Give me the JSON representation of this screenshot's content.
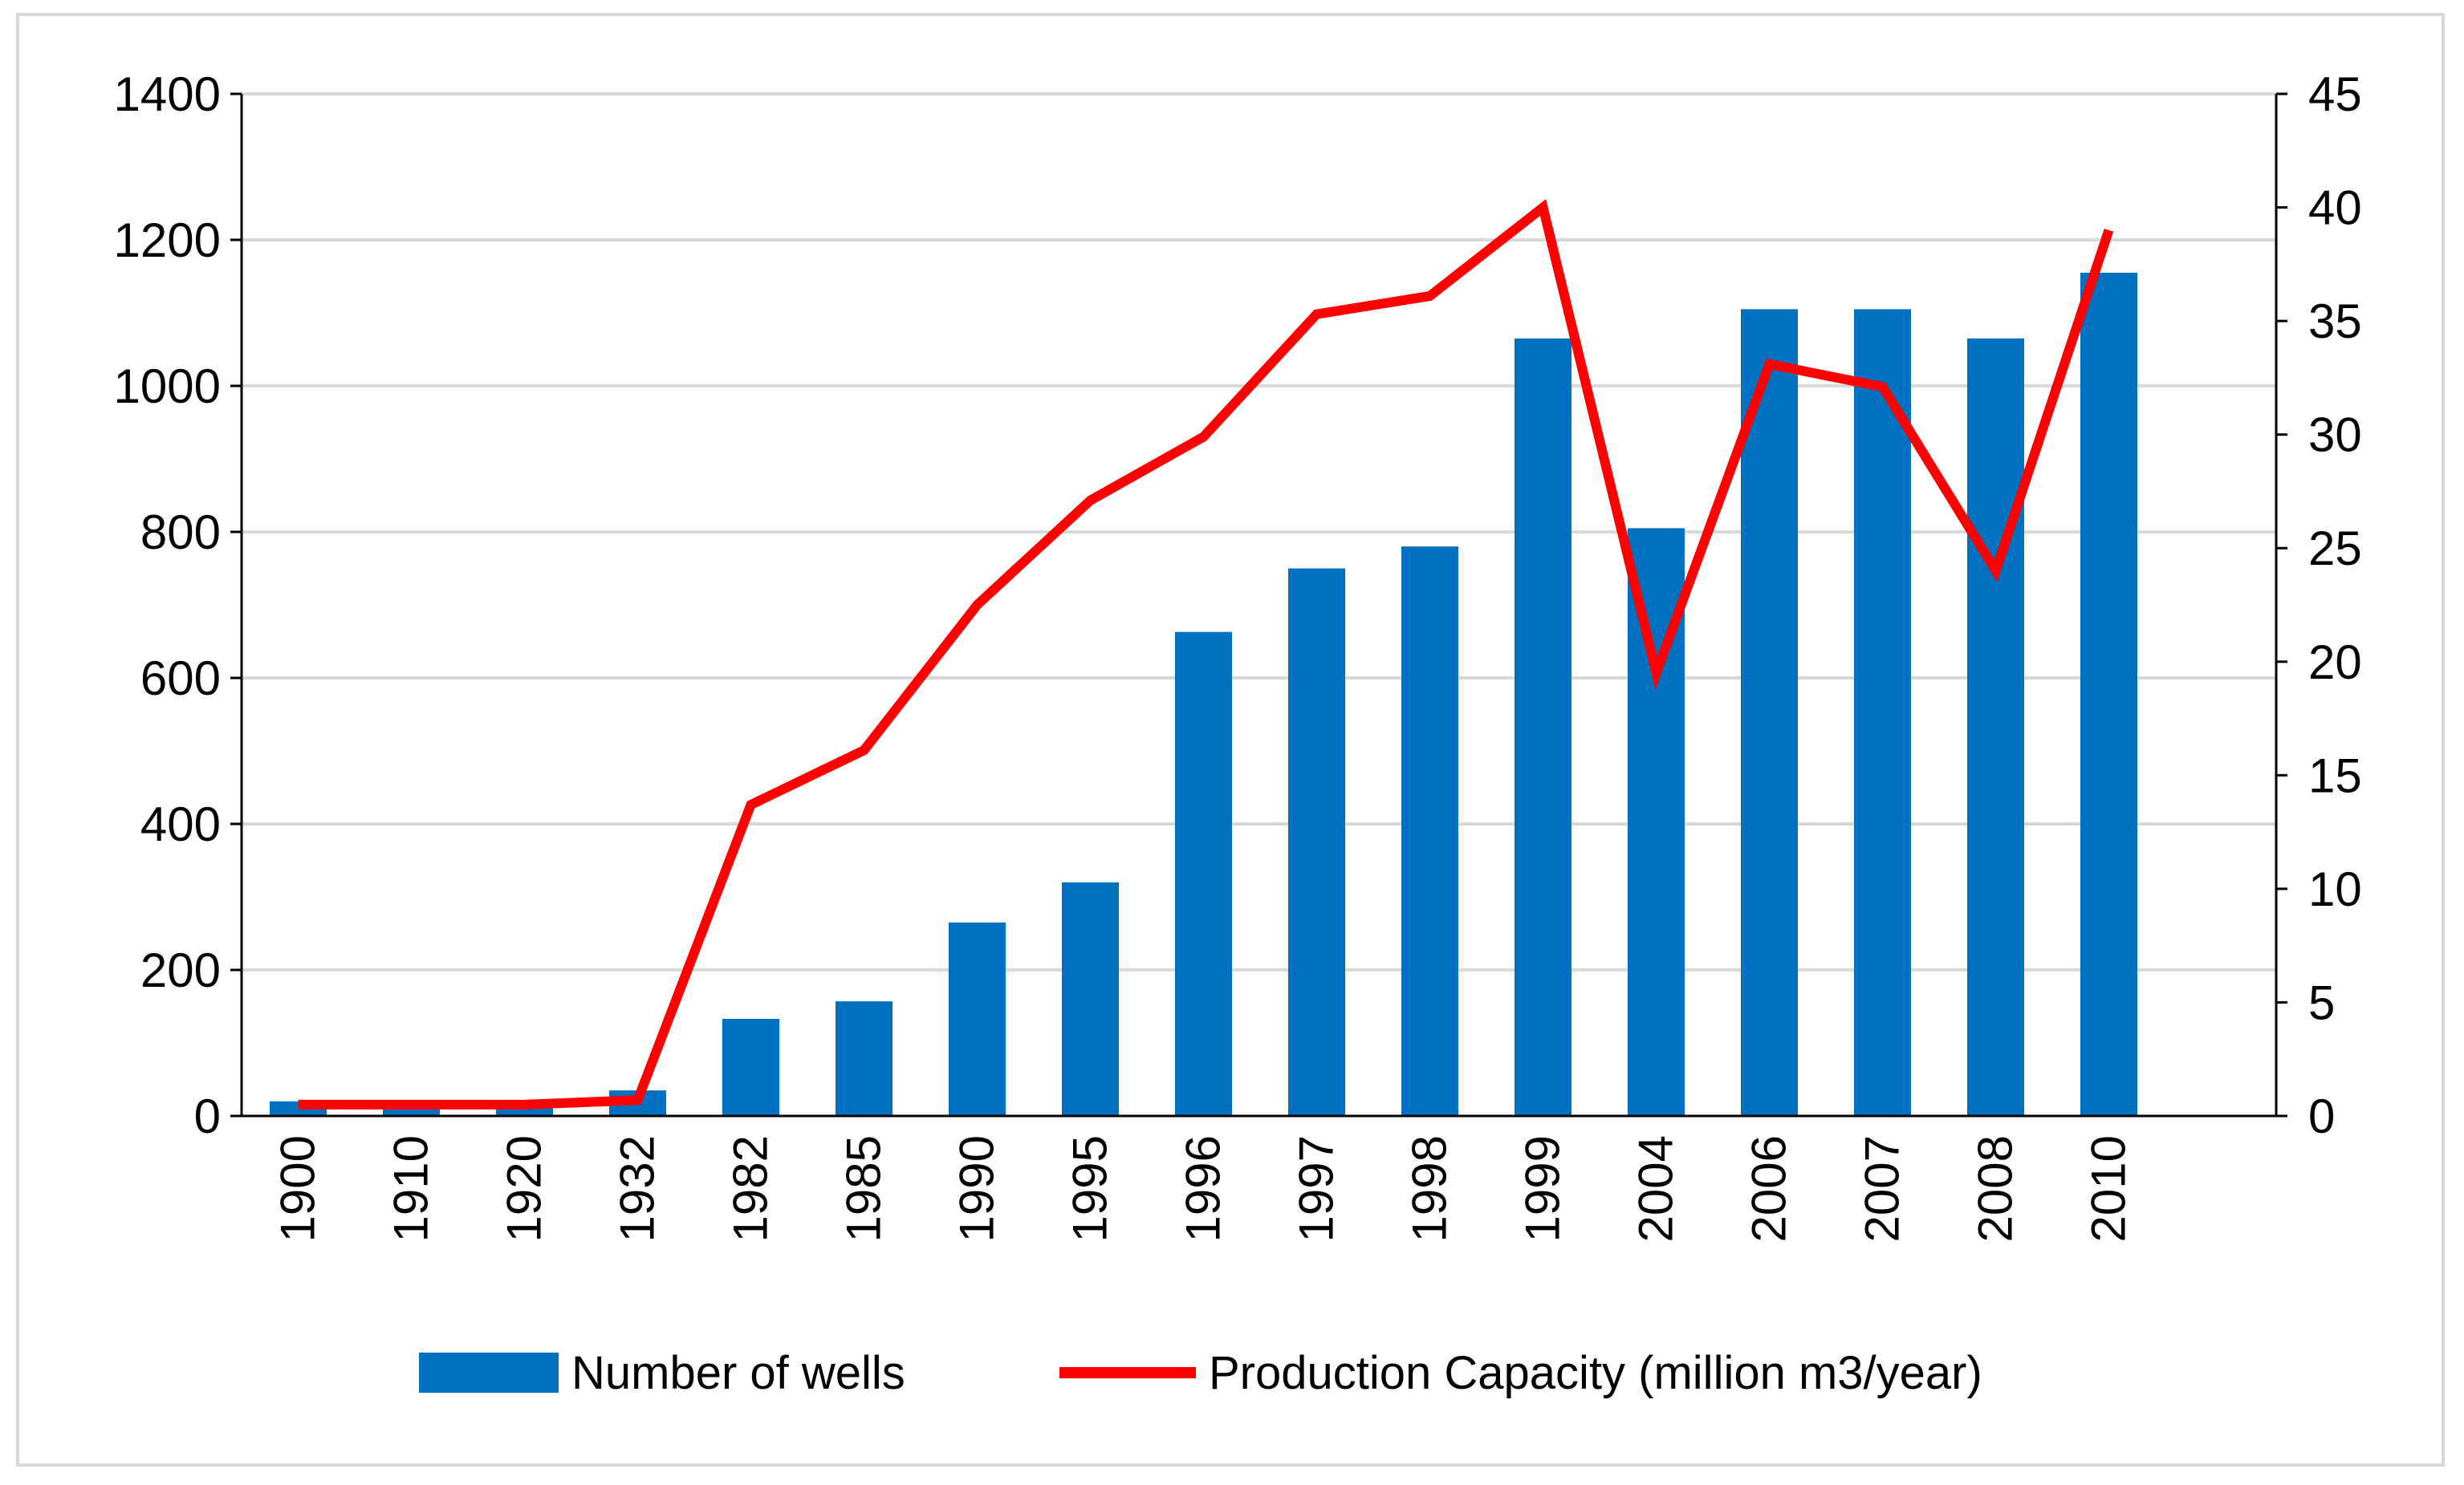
{
  "chart_data": {
    "type": "bar",
    "categories": [
      "1900",
      "1910",
      "1920",
      "1932",
      "1982",
      "1985",
      "1990",
      "1995",
      "1996",
      "1997",
      "1998",
      "1999",
      "2004",
      "2006",
      "2007",
      "2008",
      "2010"
    ],
    "series": [
      {
        "name": "Number of wells",
        "type": "bar",
        "axis": "left",
        "color": "#0070c0",
        "values": [
          20,
          22,
          22,
          35,
          133,
          157,
          265,
          320,
          663,
          750,
          780,
          1065,
          805,
          1105,
          1105,
          1065,
          1155
        ]
      },
      {
        "name": "Production Capacity (million m3/year)",
        "type": "line",
        "axis": "right",
        "color": "#ff0000",
        "values": [
          0.5,
          0.5,
          0.5,
          0.7,
          13.7,
          16.1,
          22.5,
          27.1,
          29.9,
          35.3,
          36.1,
          40.0,
          19.5,
          33.1,
          32.1,
          24.0,
          39.0
        ]
      }
    ],
    "y_left": {
      "min": 0,
      "max": 1400,
      "ticks": [
        0,
        200,
        400,
        600,
        800,
        1000,
        1200,
        1400
      ]
    },
    "y_right": {
      "min": 0,
      "max": 45,
      "ticks": [
        0,
        5,
        10,
        15,
        20,
        25,
        30,
        35,
        40,
        45
      ]
    },
    "title": "",
    "xlabel": "",
    "ylabel": "",
    "grid": true,
    "legend": "bottom"
  }
}
